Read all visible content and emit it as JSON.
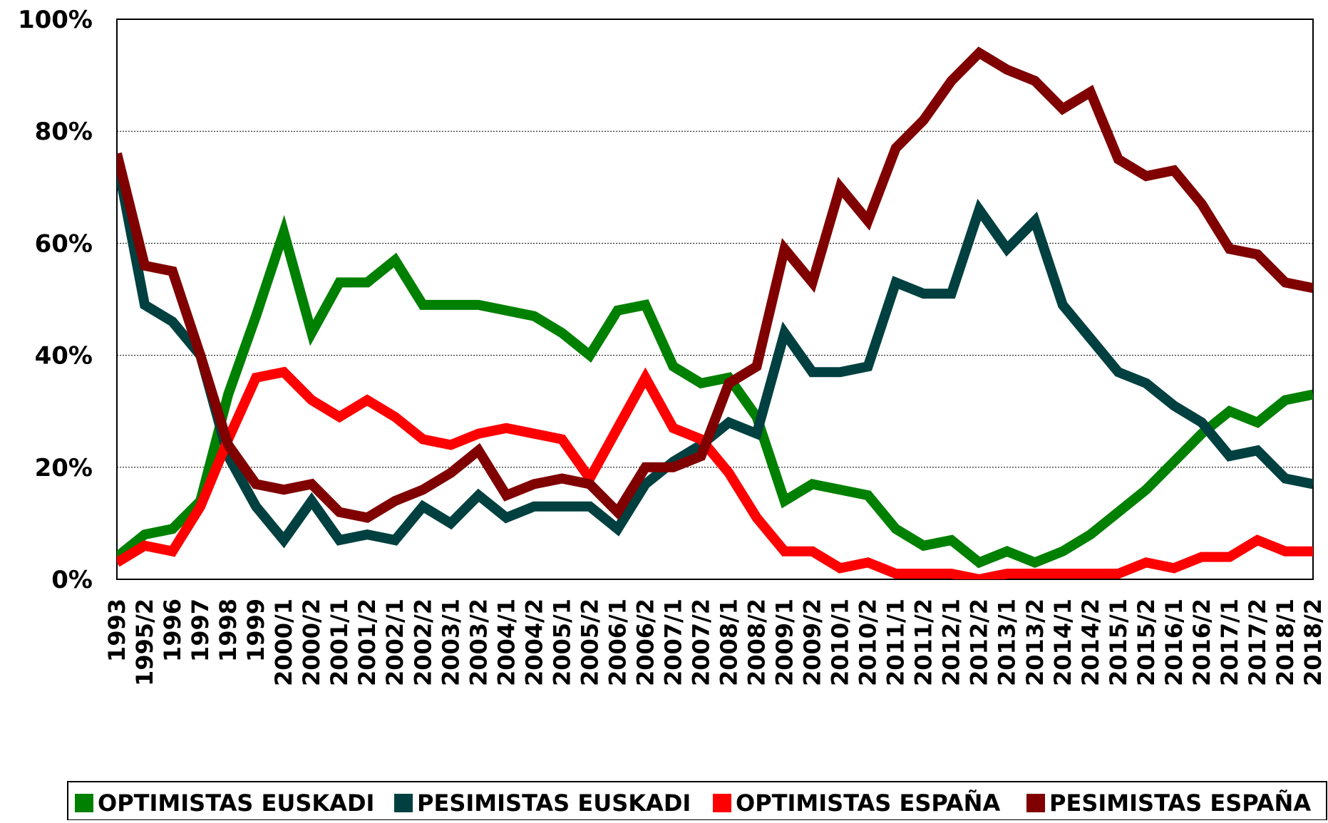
{
  "chart_data": {
    "type": "line",
    "categories": [
      "1993",
      "1995/2",
      "1996",
      "1997",
      "1998",
      "1999",
      "2000/1",
      "2000/2",
      "2001/1",
      "2001/2",
      "2002/1",
      "2002/2",
      "2003/1",
      "2003/2",
      "2004/1",
      "2004/2",
      "2005/1",
      "2005/2",
      "2006/1",
      "2006/2",
      "2007/1",
      "2007/2",
      "2008/1",
      "2008/2",
      "2009/1",
      "2009/2",
      "2010/1",
      "2010/2",
      "2011/1",
      "2011/2",
      "2012/1",
      "2012/2",
      "2013/1",
      "2013/2",
      "2014/1",
      "2014/2",
      "2015/1",
      "2015/2",
      "2016/1",
      "2016/2",
      "2017/1",
      "2017/2",
      "2018/1",
      "2018/2"
    ],
    "series": [
      {
        "name": "OPTIMISTAS EUSKADI",
        "color": "#008000",
        "values": [
          4,
          8,
          9,
          14,
          33,
          47,
          62,
          44,
          53,
          53,
          57,
          49,
          49,
          49,
          48,
          47,
          44,
          40,
          48,
          49,
          38,
          35,
          36,
          29,
          14,
          17,
          16,
          15,
          9,
          6,
          7,
          3,
          5,
          3,
          5,
          8,
          12,
          16,
          21,
          26,
          30,
          28,
          32,
          33
        ]
      },
      {
        "name": "PESIMISTAS EUSKADI",
        "color": "#004040",
        "values": [
          75,
          49,
          46,
          40,
          22,
          13,
          7,
          14,
          7,
          8,
          7,
          13,
          10,
          15,
          11,
          13,
          13,
          13,
          9,
          17,
          21,
          24,
          28,
          26,
          44,
          37,
          37,
          38,
          53,
          51,
          51,
          66,
          59,
          64,
          49,
          43,
          37,
          35,
          31,
          28,
          22,
          23,
          18,
          17
        ]
      },
      {
        "name": "OPTIMISTAS ESPAÑA",
        "color": "#ff0000",
        "values": [
          3,
          6,
          5,
          13,
          25,
          36,
          37,
          32,
          29,
          32,
          29,
          25,
          24,
          26,
          27,
          26,
          25,
          18,
          27,
          36,
          27,
          25,
          19,
          11,
          5,
          5,
          2,
          3,
          1,
          1,
          1,
          0,
          1,
          1,
          1,
          1,
          1,
          3,
          2,
          4,
          4,
          7,
          5,
          5
        ]
      },
      {
        "name": "PESIMISTAS ESPAÑA",
        "color": "#800000",
        "values": [
          76,
          56,
          55,
          40,
          24,
          17,
          16,
          17,
          12,
          11,
          14,
          16,
          19,
          23,
          15,
          17,
          18,
          17,
          12,
          20,
          20,
          22,
          35,
          38,
          59,
          53,
          70,
          64,
          77,
          82,
          89,
          94,
          91,
          89,
          84,
          87,
          75,
          72,
          73,
          67,
          59,
          58,
          53,
          52
        ]
      }
    ],
    "ylim": [
      0,
      100
    ],
    "yticks": [
      {
        "value": 0,
        "label": "0%"
      },
      {
        "value": 20,
        "label": "20%"
      },
      {
        "value": 40,
        "label": "40%"
      },
      {
        "value": 60,
        "label": "60%"
      },
      {
        "value": 80,
        "label": "80%"
      },
      {
        "value": 100,
        "label": "100%"
      }
    ],
    "grid": true,
    "legend": "bottom"
  }
}
